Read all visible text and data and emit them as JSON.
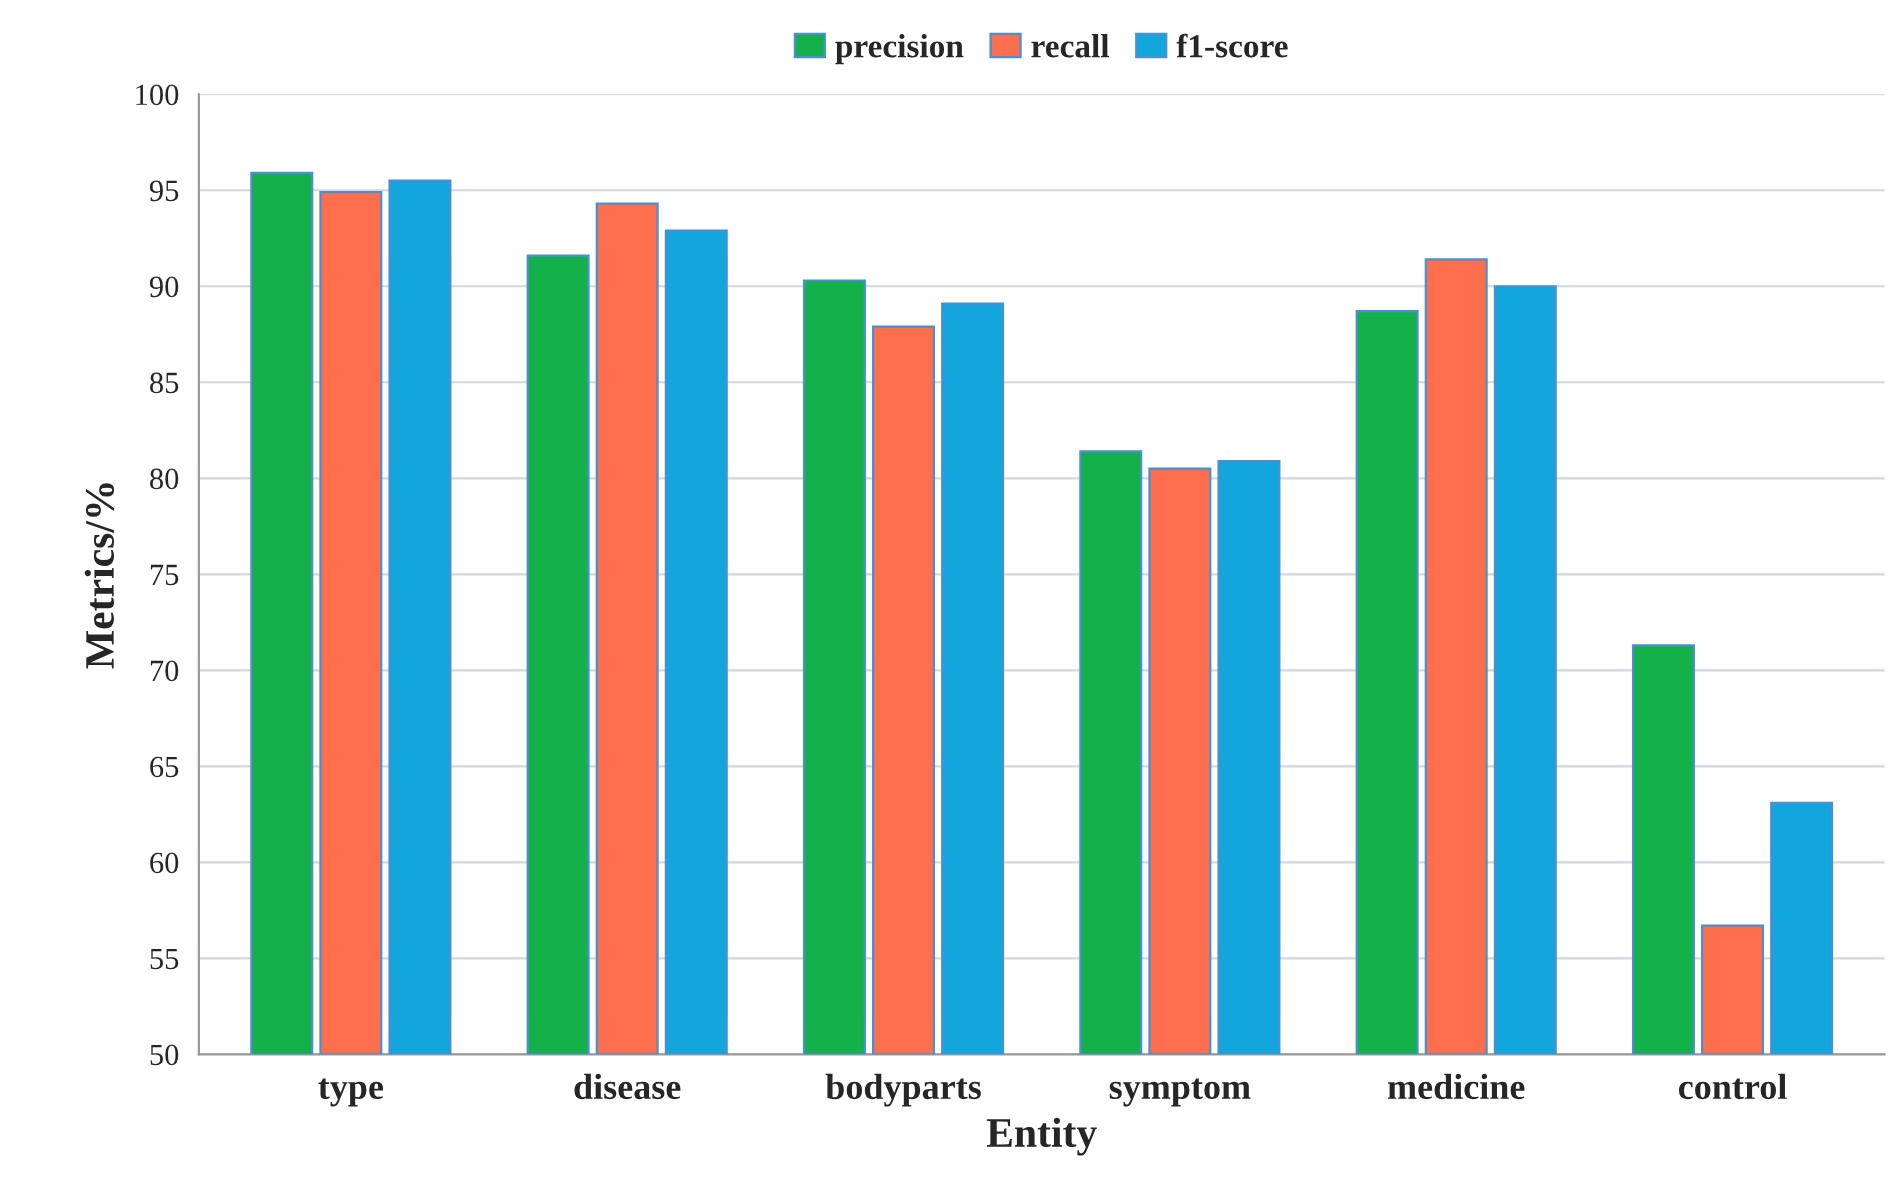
{
  "chart_data": {
    "type": "bar",
    "xlabel": "Entity",
    "ylabel": "Metrics/%",
    "categories": [
      "type",
      "disease",
      "bodyparts",
      "symptom",
      "medicine",
      "control"
    ],
    "series": [
      {
        "name": "precision",
        "color": "#14b04a",
        "values": [
          95.9,
          91.6,
          90.3,
          81.4,
          88.7,
          71.3
        ]
      },
      {
        "name": "recall",
        "color": "#ff6f4e",
        "values": [
          94.9,
          94.3,
          87.9,
          80.5,
          91.4,
          56.7
        ]
      },
      {
        "name": "f1-score",
        "color": "#12a6dc",
        "values": [
          95.5,
          92.9,
          89.1,
          80.9,
          90.0,
          63.1
        ]
      }
    ],
    "ylim": [
      50,
      100
    ],
    "yticks": [
      50,
      55,
      60,
      65,
      70,
      75,
      80,
      85,
      90,
      95,
      100
    ],
    "grid": "y",
    "legend": "top"
  }
}
